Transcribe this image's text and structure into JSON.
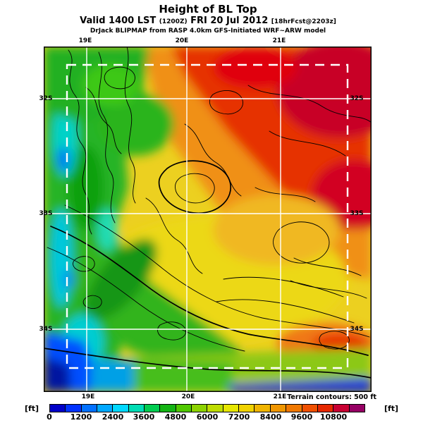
{
  "header": {
    "title": "Height of BL Top",
    "valid_prefix": "Valid 1400 LST",
    "valid_time_z": "(1200Z)",
    "valid_date": "FRI 20 Jul 2012",
    "fcst_note": "[18hrFcst@2203z]",
    "model_line": "DrJack BLIPMAP from RASP 4.0km GFS-Initiated WRF~ARW model"
  },
  "map": {
    "top_labels": [
      "19E",
      "20E",
      "21E"
    ],
    "bottom_labels": [
      "19E",
      "20E",
      "21E"
    ],
    "left_labels": [
      "32S",
      "33S",
      "34S"
    ],
    "right_labels": [
      "32S",
      "33S",
      "34S"
    ],
    "terrain_note": "Terrain contours: 500 ft",
    "domain_border_color": "#ffffff",
    "contour_color": "#000000"
  },
  "colorbar": {
    "unit_left": "[ft]",
    "unit_right": "[ft]",
    "tick_labels": [
      "0",
      "1200",
      "2400",
      "3600",
      "4800",
      "6000",
      "7200",
      "8400",
      "9600",
      "10800"
    ],
    "step_ft": 600,
    "min_ft": 0,
    "max_ft": 12000,
    "segment_colors": [
      "#0000c8",
      "#0032ff",
      "#0070ff",
      "#00a8ff",
      "#00d8ff",
      "#00dcb4",
      "#00cc50",
      "#14b414",
      "#50c800",
      "#8cd200",
      "#bedc00",
      "#e6e600",
      "#f0d200",
      "#f0b400",
      "#f09600",
      "#f07800",
      "#f05000",
      "#e62800",
      "#c80032",
      "#960064"
    ]
  }
}
